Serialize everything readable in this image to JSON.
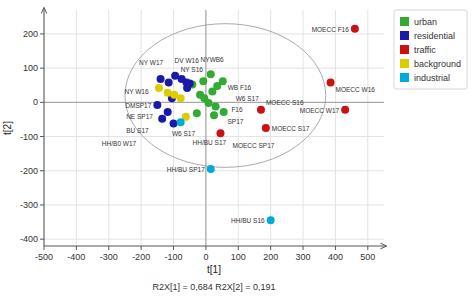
{
  "chart_data": {
    "type": "scatter",
    "x_label": "t[1]",
    "y_label": "t[2]",
    "annotation": "R2X[1] = 0,684   R2X[2] = 0,191",
    "xlim": [
      -500,
      550
    ],
    "ylim": [
      -420,
      270
    ],
    "xticks": [
      -500,
      -400,
      -300,
      -200,
      -100,
      0,
      100,
      200,
      300,
      400,
      500
    ],
    "yticks": [
      -400,
      -300,
      -200,
      -100,
      0,
      100,
      200
    ],
    "grid": true,
    "legend": "right",
    "ellipse": {
      "cx": 60,
      "cy": 20,
      "rx": 310,
      "ry": 210
    },
    "hlines": [
      0
    ],
    "vlines": [
      0
    ],
    "series": [
      {
        "name": "urban",
        "color": "#33aa33",
        "x": [
          15,
          52,
          35,
          20,
          -18,
          -5,
          8,
          30,
          55,
          25,
          -28,
          -42,
          -8
        ],
        "values": [
          82,
          62,
          48,
          32,
          22,
          12,
          -2,
          -12,
          -28,
          -38,
          -32,
          52,
          62
        ],
        "labels": [
          "DV W16",
          "WB F16",
          null,
          "F16",
          null,
          null,
          "SP17",
          null,
          "W6 S17",
          "W6 S17",
          null,
          null,
          null
        ]
      },
      {
        "name": "residential",
        "color": "#1a1aaa",
        "x": [
          -95,
          -115,
          -140,
          -75,
          -60,
          -58,
          -50,
          -105,
          -150,
          -118,
          -135,
          -100
        ],
        "values": [
          78,
          58,
          68,
          68,
          58,
          42,
          55,
          12,
          -8,
          -28,
          -48,
          -62
        ],
        "labels": [
          "NY W17",
          "NY S16",
          "NY W16",
          "NYWB6",
          null,
          null,
          null,
          "NE SP17",
          "DMSP17",
          "BU S17",
          "HH/B0 W17",
          "HH/BU S17"
        ]
      },
      {
        "name": "traffic",
        "color": "#cc1111",
        "x": [
          460,
          385,
          430,
          170,
          185,
          45
        ],
        "values": [
          215,
          58,
          -22,
          -22,
          -75,
          -90
        ],
        "labels": [
          "MOECC F16",
          "MOECC W16",
          "MOECC W17",
          "MOECC S16",
          "MOECC S17",
          "MOECC SP17"
        ]
      },
      {
        "name": "background",
        "color": "#ddcc00",
        "x": [
          -145,
          -118,
          -98,
          -78,
          -62
        ],
        "values": [
          42,
          28,
          22,
          12,
          -42
        ],
        "labels": [
          null,
          null,
          null,
          null,
          null
        ]
      },
      {
        "name": "industrial",
        "color": "#00aadd",
        "x": [
          15,
          200,
          -78
        ],
        "values": [
          -195,
          -345,
          -58
        ],
        "labels": [
          "HH/BU SP17",
          "HH/BU S16",
          null
        ]
      }
    ]
  }
}
